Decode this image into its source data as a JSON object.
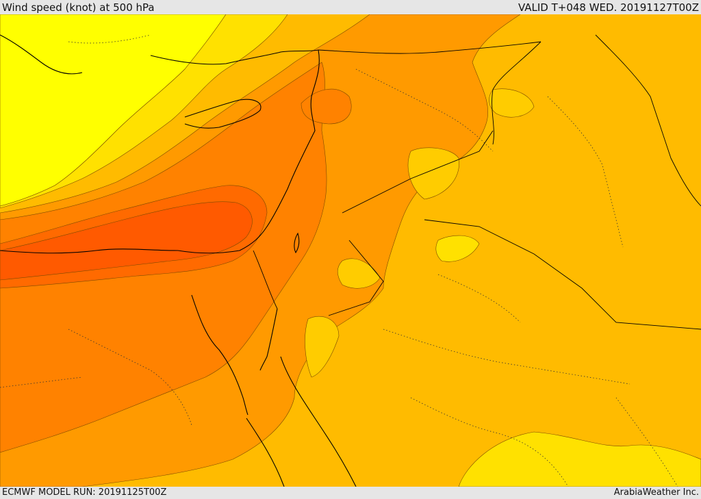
{
  "header": {
    "title": "Wind speed (knot) at 500 hPa",
    "valid_time": "VALID T+048 WED. 20191127T00Z"
  },
  "footer": {
    "model_run": "ECMWF MODEL RUN: 20191125T00Z",
    "credit": "ArabiaWeather Inc."
  },
  "palette": {
    "band_1": "#ffff00",
    "band_2": "#ffe100",
    "band_3": "#ffcc00",
    "band_4": "#ffbb00",
    "band_5": "#ffa700",
    "band_6": "#ff9a00",
    "band_7": "#ff8200",
    "band_8": "#ff6a00",
    "band_9": "#ff5a00",
    "coastline": "#000000",
    "border": "#333333"
  }
}
